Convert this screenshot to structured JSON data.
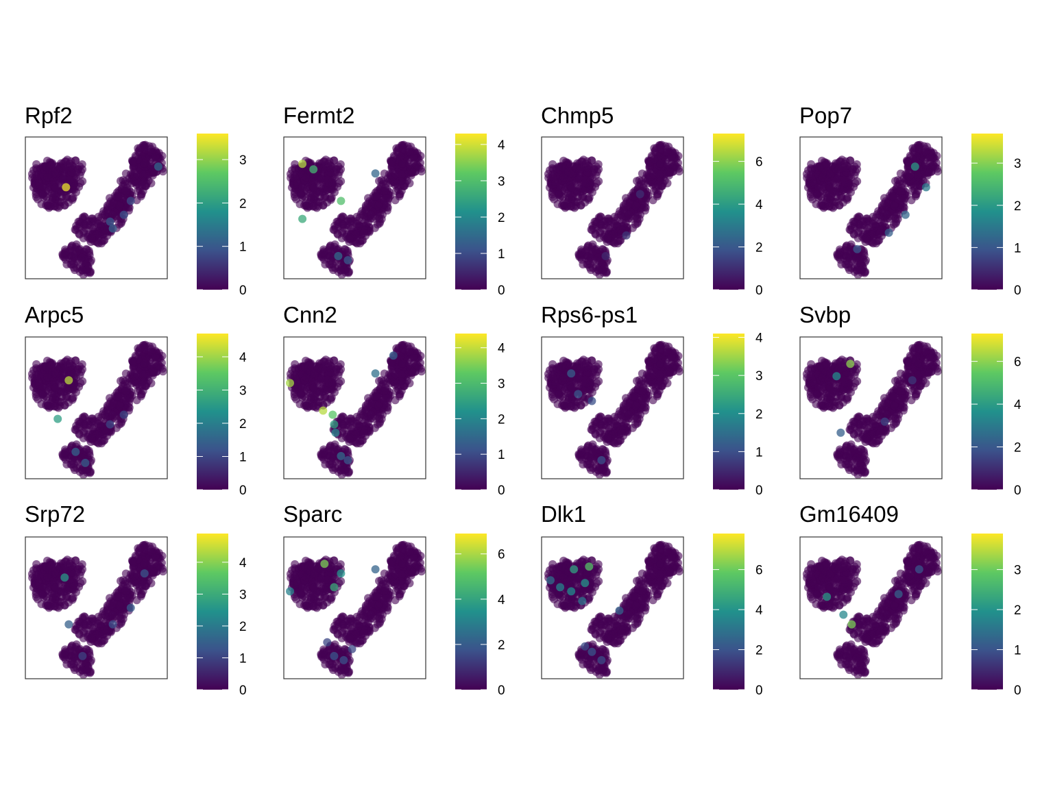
{
  "chart_data": {
    "type": "scatter",
    "description": "Grid of 12 gene-expression scatter plots over the same embedding, each with a viridis colorbar.",
    "colormap": [
      "#440154",
      "#3b528b",
      "#21918c",
      "#5ec962",
      "#fde725"
    ],
    "point_base_color": "#440154",
    "panels": [
      {
        "title": "Rpf2",
        "color_max": 3.6,
        "ticks": [
          0,
          1,
          2,
          3
        ],
        "hot": [
          [
            0.28,
            0.35,
            3.5
          ],
          [
            0.95,
            0.2,
            1.2
          ],
          [
            0.62,
            0.65,
            1.1
          ],
          [
            0.7,
            0.55,
            0.9
          ],
          [
            0.75,
            0.45,
            0.8
          ],
          [
            0.6,
            0.6,
            1.0
          ]
        ]
      },
      {
        "title": "Fermt2",
        "color_max": 4.3,
        "ticks": [
          0,
          1,
          2,
          3,
          4
        ],
        "hot": [
          [
            0.12,
            0.18,
            3.8
          ],
          [
            0.2,
            0.22,
            2.8
          ],
          [
            0.4,
            0.45,
            3.0
          ],
          [
            0.12,
            0.58,
            2.6
          ],
          [
            0.38,
            0.85,
            1.5
          ],
          [
            0.45,
            0.88,
            1.2
          ],
          [
            0.65,
            0.25,
            1.4
          ]
        ]
      },
      {
        "title": "Chmp5",
        "color_max": 7.3,
        "ticks": [
          0,
          2,
          4,
          6
        ],
        "hot": [
          [
            0.6,
            0.7,
            1.2
          ],
          [
            0.7,
            0.4,
            1.0
          ],
          [
            0.45,
            0.85,
            0.9
          ]
        ]
      },
      {
        "title": "Pop7",
        "color_max": 3.7,
        "ticks": [
          0,
          1,
          2,
          3
        ],
        "hot": [
          [
            0.82,
            0.2,
            2.0
          ],
          [
            0.9,
            0.35,
            1.5
          ],
          [
            0.75,
            0.55,
            1.2
          ],
          [
            0.63,
            0.68,
            1.1
          ],
          [
            0.4,
            0.8,
            1.0
          ]
        ]
      },
      {
        "title": "Arpc5",
        "color_max": 4.7,
        "ticks": [
          0,
          1,
          2,
          3,
          4
        ],
        "hot": [
          [
            0.3,
            0.3,
            4.2
          ],
          [
            0.22,
            0.58,
            2.6
          ],
          [
            0.35,
            0.82,
            1.5
          ],
          [
            0.42,
            0.9,
            1.4
          ],
          [
            0.7,
            0.55,
            1.0
          ],
          [
            0.6,
            0.62,
            1.0
          ]
        ]
      },
      {
        "title": "Cnn2",
        "color_max": 4.4,
        "ticks": [
          0,
          1,
          2,
          3,
          4
        ],
        "hot": [
          [
            0.03,
            0.32,
            3.8
          ],
          [
            0.27,
            0.52,
            3.9
          ],
          [
            0.34,
            0.55,
            3.2
          ],
          [
            0.35,
            0.62,
            2.5
          ],
          [
            0.36,
            0.68,
            2.0
          ],
          [
            0.65,
            0.25,
            1.6
          ],
          [
            0.78,
            0.12,
            1.3
          ],
          [
            0.4,
            0.85,
            1.5
          ],
          [
            0.45,
            0.88,
            1.2
          ]
        ]
      },
      {
        "title": "Rps6-ps1",
        "color_max": 4.1,
        "ticks": [
          0,
          1,
          2,
          3,
          4
        ],
        "hot": [
          [
            0.2,
            0.25,
            1.2
          ],
          [
            0.25,
            0.4,
            1.1
          ],
          [
            0.35,
            0.45,
            1.0
          ],
          [
            0.42,
            0.88,
            1.0
          ]
        ]
      },
      {
        "title": "Svbp",
        "color_max": 7.3,
        "ticks": [
          0,
          2,
          4,
          6
        ],
        "hot": [
          [
            0.35,
            0.18,
            6.0
          ],
          [
            0.25,
            0.27,
            3.5
          ],
          [
            0.28,
            0.68,
            2.2
          ],
          [
            0.6,
            0.6,
            1.5
          ],
          [
            0.8,
            0.3,
            1.2
          ]
        ]
      },
      {
        "title": "Srp72",
        "color_max": 4.9,
        "ticks": [
          0,
          1,
          2,
          3,
          4
        ],
        "hot": [
          [
            0.27,
            0.28,
            2.6
          ],
          [
            0.3,
            0.62,
            1.5
          ],
          [
            0.75,
            0.5,
            1.4
          ],
          [
            0.85,
            0.25,
            1.3
          ],
          [
            0.62,
            0.62,
            1.2
          ],
          [
            0.4,
            0.85,
            1.0
          ]
        ]
      },
      {
        "title": "Sparc",
        "color_max": 6.9,
        "ticks": [
          0,
          2,
          4,
          6
        ],
        "hot": [
          [
            0.28,
            0.18,
            5.5
          ],
          [
            0.4,
            0.25,
            3.5
          ],
          [
            0.35,
            0.35,
            4.2
          ],
          [
            0.03,
            0.38,
            3.0
          ],
          [
            0.65,
            0.22,
            2.2
          ],
          [
            0.35,
            0.85,
            1.8
          ],
          [
            0.42,
            0.88,
            1.7
          ],
          [
            0.48,
            0.8,
            1.5
          ],
          [
            0.3,
            0.75,
            1.5
          ]
        ]
      },
      {
        "title": "Dlk1",
        "color_max": 7.8,
        "ticks": [
          0,
          2,
          4,
          6
        ],
        "hot": [
          [
            0.33,
            0.2,
            5.6
          ],
          [
            0.22,
            0.22,
            4.4
          ],
          [
            0.3,
            0.32,
            4.0
          ],
          [
            0.2,
            0.38,
            3.8
          ],
          [
            0.12,
            0.35,
            3.5
          ],
          [
            0.05,
            0.3,
            2.8
          ],
          [
            0.28,
            0.45,
            3.0
          ],
          [
            0.55,
            0.52,
            2.4
          ],
          [
            0.35,
            0.82,
            2.0
          ],
          [
            0.42,
            0.88,
            1.8
          ],
          [
            0.3,
            0.78,
            1.8
          ]
        ]
      },
      {
        "title": "Gm16409",
        "color_max": 3.9,
        "ticks": [
          0,
          1,
          2,
          3
        ],
        "hot": [
          [
            0.36,
            0.62,
            3.1
          ],
          [
            0.18,
            0.42,
            2.1
          ],
          [
            0.3,
            0.55,
            1.8
          ],
          [
            0.7,
            0.4,
            1.2
          ],
          [
            0.85,
            0.22,
            1.0
          ]
        ]
      }
    ]
  }
}
